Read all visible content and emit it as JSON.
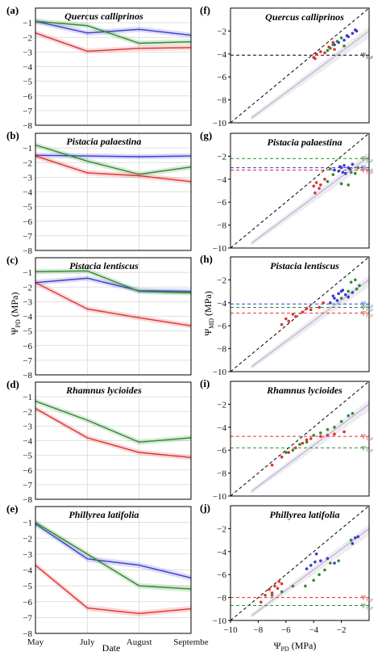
{
  "figure": {
    "left_ylabel": "Ψ",
    "left_ylabel_sub": "PD",
    "left_ylabel_unit": " (MPa)",
    "left_xlabel": "Date",
    "right_ylabel": "Ψ",
    "right_ylabel_sub": "MD",
    "right_ylabel_unit": " (MPa)",
    "right_xlabel": "Ψ",
    "right_xlabel_sub": "PD",
    "right_xlabel_unit": " (MPa)"
  },
  "chart_data": [
    {
      "type": "line",
      "panel": "(a)",
      "title": "Quercus calliprinos",
      "categories": [
        "May",
        "July",
        "August",
        "Septembe"
      ],
      "ylim": [
        -8,
        0
      ],
      "yticks": [
        -1,
        -2,
        -3,
        -4,
        -5,
        -6,
        -7,
        -8
      ],
      "grid": true,
      "series": [
        {
          "color": "#3a3ad4",
          "values": [
            -0.9,
            -1.7,
            -1.45,
            -1.85
          ]
        },
        {
          "color": "#2e8b2e",
          "values": [
            -0.9,
            -1.2,
            -2.4,
            -2.3
          ]
        },
        {
          "color": "#e03030",
          "values": [
            -1.7,
            -2.95,
            -2.75,
            -2.7
          ]
        }
      ]
    },
    {
      "type": "line",
      "panel": "(b)",
      "title": "Pistacia palaestina",
      "categories": [
        "May",
        "July",
        "August",
        "Septembe"
      ],
      "ylim": [
        -8,
        0
      ],
      "yticks": [
        -1,
        -2,
        -3,
        -4,
        -5,
        -6,
        -7,
        -8
      ],
      "grid": true,
      "series": [
        {
          "color": "#3a3ad4",
          "values": [
            -1.5,
            -1.55,
            -1.6,
            -1.55
          ]
        },
        {
          "color": "#2e8b2e",
          "values": [
            -0.8,
            -1.9,
            -2.8,
            -2.3
          ]
        },
        {
          "color": "#e03030",
          "values": [
            -1.55,
            -2.7,
            -2.9,
            -3.3
          ]
        }
      ]
    },
    {
      "type": "line",
      "panel": "(c)",
      "title": "Pistacia lentiscus",
      "categories": [
        "May",
        "July",
        "August",
        "Septembe"
      ],
      "ylim": [
        -8,
        0
      ],
      "yticks": [
        -1,
        -2,
        -3,
        -4,
        -5,
        -6,
        -7,
        -8
      ],
      "grid": true,
      "series": [
        {
          "color": "#3a3ad4",
          "values": [
            -1.7,
            -1.4,
            -2.25,
            -2.3
          ]
        },
        {
          "color": "#2e8b2e",
          "values": [
            -0.95,
            -0.9,
            -2.3,
            -2.4
          ]
        },
        {
          "color": "#e03030",
          "values": [
            -1.7,
            -3.5,
            -4.1,
            -4.65
          ]
        }
      ]
    },
    {
      "type": "line",
      "panel": "(d)",
      "title": "Rhamnus lycioides",
      "categories": [
        "May",
        "July",
        "August",
        "Septembe"
      ],
      "ylim": [
        -8,
        0
      ],
      "yticks": [
        -1,
        -2,
        -3,
        -4,
        -5,
        -6,
        -7,
        -8
      ],
      "grid": true,
      "series": [
        {
          "color": "#2e8b2e",
          "values": [
            -1.3,
            -2.6,
            -4.1,
            -3.8
          ]
        },
        {
          "color": "#e03030",
          "values": [
            -1.8,
            -3.8,
            -4.8,
            -5.15
          ]
        }
      ]
    },
    {
      "type": "line",
      "panel": "(e)",
      "title": "Phillyrea latifolia",
      "categories": [
        "May",
        "July",
        "August",
        "Septembe"
      ],
      "xticklabels": [
        "May",
        "July",
        "August",
        "Septembe"
      ],
      "xlabel": "Date",
      "ylim": [
        -8,
        0
      ],
      "yticks": [
        -1,
        -2,
        -3,
        -4,
        -5,
        -6,
        -7,
        -8
      ],
      "grid": true,
      "series": [
        {
          "color": "#3a3ad4",
          "values": [
            -1.1,
            -3.3,
            -3.7,
            -4.5
          ]
        },
        {
          "color": "#2e8b2e",
          "values": [
            -1.0,
            -3.0,
            -5.0,
            -5.2
          ]
        },
        {
          "color": "#e03030",
          "values": [
            -3.7,
            -6.4,
            -6.75,
            -6.45
          ]
        }
      ]
    },
    {
      "type": "scatter",
      "panel": "(f)",
      "title": "Quercus calliprinos",
      "xlim": [
        -10,
        0
      ],
      "ylim": [
        -10,
        0
      ],
      "yticks": [
        -2,
        -4,
        -6,
        -8,
        -10
      ],
      "thresholds": [
        {
          "y": -4.1,
          "color": "#000000",
          "label": "Ψ",
          "sub": "TLP"
        }
      ],
      "points": [
        {
          "color": "#3a3ad4",
          "xy": [
            [
              -1.5,
              -2.5
            ],
            [
              -1.2,
              -2.2
            ],
            [
              -0.9,
              -2.0
            ],
            [
              -1.8,
              -2.8
            ],
            [
              -2.2,
              -3.0
            ],
            [
              -1.0,
              -1.9
            ],
            [
              -2.5,
              -3.2
            ],
            [
              -1.6,
              -2.4
            ]
          ]
        },
        {
          "color": "#2e8b2e",
          "xy": [
            [
              -2.8,
              -3.5
            ],
            [
              -2.6,
              -3.2
            ],
            [
              -2.0,
              -2.6
            ],
            [
              -3.0,
              -3.7
            ],
            [
              -2.3,
              -2.9
            ],
            [
              -1.8,
              -3.3
            ]
          ]
        },
        {
          "color": "#e03030",
          "xy": [
            [
              -4.0,
              -4.3
            ],
            [
              -3.8,
              -4.0
            ],
            [
              -3.5,
              -3.8
            ],
            [
              -3.2,
              -3.9
            ],
            [
              -2.9,
              -3.4
            ],
            [
              -2.6,
              -3.0
            ],
            [
              -3.9,
              -4.4
            ],
            [
              -2.5,
              -3.6
            ]
          ]
        }
      ]
    },
    {
      "type": "scatter",
      "panel": "(g)",
      "title": "Pistacia palaestina",
      "xlim": [
        -10,
        0
      ],
      "ylim": [
        -10,
        0
      ],
      "yticks": [
        -2,
        -4,
        -6,
        -8,
        -10
      ],
      "thresholds": [
        {
          "y": -2.2,
          "color": "#2e8b2e",
          "label": "Ψ",
          "sub": "TLP"
        },
        {
          "y": -3.0,
          "color": "#3a3ad4",
          "label": "Ψ",
          "sub": "TLP"
        },
        {
          "y": -3.2,
          "color": "#e03030",
          "label": "Ψ",
          "sub": "TLP"
        }
      ],
      "points": [
        {
          "color": "#3a3ad4",
          "xy": [
            [
              -2.0,
              -3.0
            ],
            [
              -1.8,
              -2.8
            ],
            [
              -2.2,
              -3.3
            ],
            [
              -1.5,
              -3.0
            ],
            [
              -1.2,
              -2.7
            ],
            [
              -1.7,
              -3.5
            ],
            [
              -2.5,
              -3.2
            ],
            [
              -1.9,
              -3.4
            ],
            [
              -1.4,
              -3.1
            ],
            [
              -2.1,
              -2.9
            ]
          ]
        },
        {
          "color": "#2e8b2e",
          "xy": [
            [
              -2.6,
              -3.6
            ],
            [
              -3.0,
              -4.2
            ],
            [
              -2.0,
              -4.4
            ],
            [
              -1.5,
              -4.5
            ],
            [
              -1.0,
              -3.5
            ],
            [
              -0.8,
              -3.0
            ],
            [
              -2.8,
              -3.1
            ],
            [
              -1.3,
              -3.4
            ]
          ]
        },
        {
          "color": "#e03030",
          "xy": [
            [
              -3.5,
              -4.5
            ],
            [
              -3.8,
              -4.3
            ],
            [
              -3.2,
              -4.0
            ],
            [
              -3.6,
              -4.8
            ],
            [
              -4.0,
              -4.6
            ],
            [
              -3.9,
              -5.2
            ]
          ]
        }
      ]
    },
    {
      "type": "scatter",
      "panel": "(h)",
      "title": "Pistacia lentiscus",
      "xlim": [
        -10,
        0
      ],
      "ylim": [
        -10,
        0
      ],
      "yticks": [
        -2,
        -4,
        -6,
        -8,
        -10
      ],
      "ylabel": "Ψ",
      "thresholds": [
        {
          "y": -4.1,
          "color": "#3a3ad4",
          "label": "Ψ",
          "sub": "TLP"
        },
        {
          "y": -4.4,
          "color": "#2e8b2e",
          "label": "Ψ",
          "sub": "TLP"
        },
        {
          "y": -4.9,
          "color": "#e03030",
          "label": "Ψ",
          "sub": "TLP"
        }
      ],
      "points": [
        {
          "color": "#3a3ad4",
          "xy": [
            [
              -2.2,
              -3.2
            ],
            [
              -2.0,
              -3.0
            ],
            [
              -1.5,
              -3.5
            ],
            [
              -2.5,
              -3.6
            ],
            [
              -1.7,
              -3.3
            ],
            [
              -2.8,
              -4.0
            ],
            [
              -1.2,
              -3.1
            ],
            [
              -2.3,
              -3.8
            ],
            [
              -1.9,
              -2.9
            ],
            [
              -2.6,
              -3.4
            ]
          ]
        },
        {
          "color": "#2e8b2e",
          "xy": [
            [
              -1.0,
              -2.0
            ],
            [
              -0.7,
              -2.5
            ],
            [
              -1.3,
              -2.2
            ],
            [
              -1.5,
              -3.0
            ],
            [
              -0.9,
              -2.8
            ],
            [
              -2.0,
              -3.6
            ]
          ]
        },
        {
          "color": "#e03030",
          "xy": [
            [
              -6.3,
              -5.9
            ],
            [
              -5.8,
              -5.6
            ],
            [
              -5.3,
              -5.2
            ],
            [
              -4.8,
              -4.8
            ],
            [
              -4.2,
              -4.6
            ],
            [
              -3.6,
              -4.4
            ],
            [
              -5.5,
              -5.0
            ],
            [
              -4.5,
              -4.5
            ],
            [
              -6.0,
              -5.4
            ],
            [
              -3.3,
              -4.0
            ]
          ]
        }
      ]
    },
    {
      "type": "scatter",
      "panel": "(i)",
      "title": "Rhamnus lycioides",
      "xlim": [
        -10,
        0
      ],
      "ylim": [
        -10,
        0
      ],
      "yticks": [
        -2,
        -4,
        -6,
        -8,
        -10
      ],
      "thresholds": [
        {
          "y": -4.8,
          "color": "#e03030",
          "label": "Ψ",
          "sub": "TLP"
        },
        {
          "y": -5.8,
          "color": "#2e8b2e",
          "label": "Ψ",
          "sub": "TLP"
        }
      ],
      "points": [
        {
          "color": "#2e8b2e",
          "xy": [
            [
              -1.5,
              -3.0
            ],
            [
              -1.2,
              -2.8
            ],
            [
              -2.0,
              -3.5
            ],
            [
              -2.5,
              -4.0
            ],
            [
              -3.0,
              -4.2
            ],
            [
              -3.5,
              -4.5
            ],
            [
              -4.0,
              -4.7
            ],
            [
              -4.5,
              -5.3
            ],
            [
              -5.0,
              -5.5
            ],
            [
              -5.5,
              -6.0
            ],
            [
              -6.0,
              -6.2
            ]
          ]
        },
        {
          "color": "#e03030",
          "xy": [
            [
              -4.2,
              -5.0
            ],
            [
              -4.8,
              -5.4
            ],
            [
              -5.3,
              -5.8
            ],
            [
              -5.8,
              -6.2
            ],
            [
              -6.3,
              -6.6
            ],
            [
              -7.0,
              -7.3
            ],
            [
              -4.5,
              -5.1
            ],
            [
              -3.5,
              -4.8
            ],
            [
              -3.0,
              -4.7
            ],
            [
              -2.5,
              -4.6
            ],
            [
              -1.8,
              -4.4
            ]
          ]
        }
      ]
    },
    {
      "type": "scatter",
      "panel": "(j)",
      "title": "Phillyrea latifolia",
      "xlim": [
        -10,
        0
      ],
      "ylim": [
        -10,
        0
      ],
      "yticks": [
        -2,
        -4,
        -6,
        -8,
        -10
      ],
      "xticks": [
        -10,
        -8,
        -6,
        -4,
        -2
      ],
      "xlabel": "Ψ",
      "thresholds": [
        {
          "y": -8.0,
          "color": "#e03030",
          "label": "Ψ",
          "sub": "TLP"
        },
        {
          "y": -8.7,
          "color": "#2e8b2e",
          "label": "Ψ",
          "sub": "TLP"
        }
      ],
      "points": [
        {
          "color": "#3a3ad4",
          "xy": [
            [
              -1.0,
              -2.8
            ],
            [
              -0.8,
              -2.7
            ],
            [
              -1.2,
              -3.3
            ],
            [
              -3.8,
              -4.2
            ],
            [
              -3.5,
              -4.8
            ],
            [
              -4.2,
              -5.2
            ],
            [
              -3.0,
              -4.6
            ],
            [
              -2.5,
              -5.0
            ],
            [
              -4.5,
              -5.5
            ],
            [
              -3.9,
              -4.9
            ]
          ]
        },
        {
          "color": "#2e8b2e",
          "xy": [
            [
              -1.3,
              -3.0
            ],
            [
              -2.8,
              -5.0
            ],
            [
              -3.2,
              -5.6
            ],
            [
              -4.0,
              -6.5
            ],
            [
              -4.6,
              -7.0
            ],
            [
              -5.5,
              -7.0
            ],
            [
              -6.3,
              -7.5
            ],
            [
              -7.0,
              -7.8
            ],
            [
              -3.6,
              -6.0
            ],
            [
              -2.2,
              -4.8
            ]
          ]
        },
        {
          "color": "#e03030",
          "xy": [
            [
              -6.5,
              -6.6
            ],
            [
              -6.8,
              -7.0
            ],
            [
              -7.2,
              -7.3
            ],
            [
              -7.5,
              -7.8
            ],
            [
              -7.8,
              -8.4
            ],
            [
              -6.3,
              -6.8
            ],
            [
              -7.0,
              -7.6
            ],
            [
              -6.6,
              -7.2
            ]
          ]
        }
      ]
    }
  ]
}
